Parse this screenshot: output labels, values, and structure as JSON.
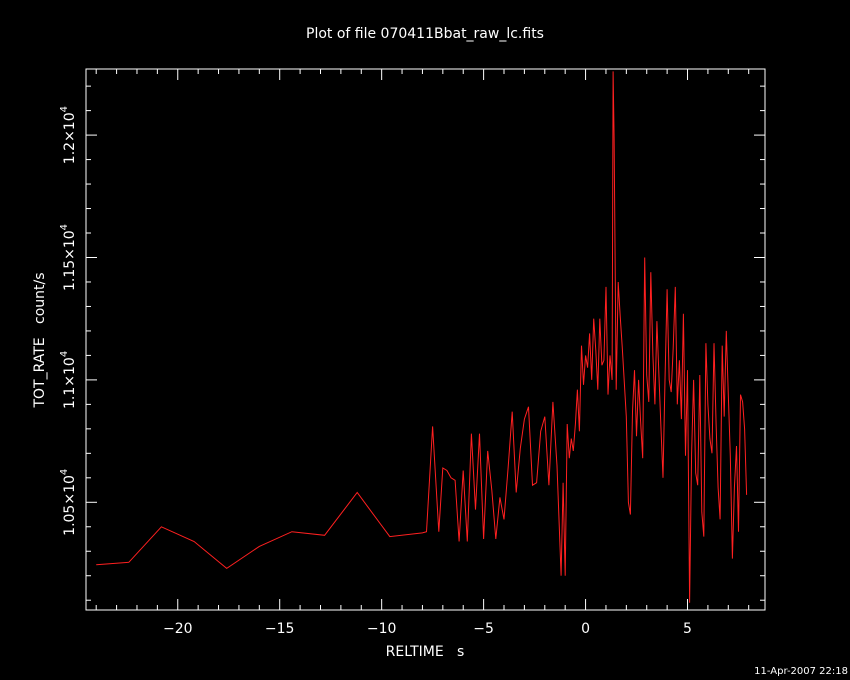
{
  "colors": {
    "background": "#000000",
    "foreground": "#ffffff",
    "series": "#ff2020"
  },
  "footer": {
    "timestamp": "11-Apr-2007 22:18"
  },
  "chart_data": {
    "type": "line",
    "title": "Plot of file 070411Bbat_raw_lc.fits",
    "xlabel": "RELTIME   s",
    "ylabel": "TOT_RATE   count/s",
    "xlim": [
      -24.5,
      8.8
    ],
    "ylim": [
      10060,
      12270
    ],
    "x_ticks": [
      {
        "value": -20,
        "label": "−20"
      },
      {
        "value": -15,
        "label": "−15"
      },
      {
        "value": -10,
        "label": "−10"
      },
      {
        "value": -5,
        "label": "−5"
      },
      {
        "value": 0,
        "label": "0"
      },
      {
        "value": 5,
        "label": "5"
      }
    ],
    "y_ticks": [
      {
        "value": 10500,
        "mantissa": "1.05×10",
        "exp": "4"
      },
      {
        "value": 11000,
        "mantissa": "1.1×10",
        "exp": "4"
      },
      {
        "value": 11500,
        "mantissa": "1.15×10",
        "exp": "4"
      },
      {
        "value": 12000,
        "mantissa": "1.2×10",
        "exp": "4"
      }
    ],
    "series": [
      {
        "x": [
          -24.0,
          -22.4,
          -20.8,
          -19.2,
          -17.6,
          -16.0,
          -14.4,
          -12.8,
          -11.2,
          -9.6,
          -8.0,
          -7.8,
          -7.5,
          -7.2,
          -7.0,
          -6.8,
          -6.6,
          -6.4,
          -6.2,
          -6.0,
          -5.8,
          -5.6,
          -5.4,
          -5.2,
          -5.0,
          -4.8,
          -4.6,
          -4.4,
          -4.2,
          -4.0,
          -3.8,
          -3.6,
          -3.4,
          -3.2,
          -3.0,
          -2.8,
          -2.6,
          -2.4,
          -2.2,
          -2.0,
          -1.8,
          -1.6,
          -1.4,
          -1.2,
          -1.1,
          -1.0,
          -0.9,
          -0.8,
          -0.7,
          -0.6,
          -0.5,
          -0.4,
          -0.3,
          -0.2,
          -0.1,
          0.0,
          0.1,
          0.2,
          0.3,
          0.4,
          0.5,
          0.6,
          0.7,
          0.8,
          0.9,
          1.0,
          1.1,
          1.2,
          1.3,
          1.35,
          1.4,
          1.5,
          1.6,
          1.7,
          1.8,
          1.9,
          2.0,
          2.1,
          2.2,
          2.3,
          2.4,
          2.5,
          2.6,
          2.7,
          2.8,
          2.9,
          3.0,
          3.1,
          3.2,
          3.3,
          3.4,
          3.5,
          3.6,
          3.7,
          3.8,
          3.9,
          4.0,
          4.1,
          4.2,
          4.3,
          4.4,
          4.5,
          4.6,
          4.7,
          4.8,
          4.9,
          5.0,
          5.1,
          5.2,
          5.3,
          5.4,
          5.5,
          5.6,
          5.7,
          5.8,
          5.9,
          6.0,
          6.1,
          6.2,
          6.3,
          6.4,
          6.5,
          6.6,
          6.7,
          6.8,
          6.9,
          7.0,
          7.1,
          7.2,
          7.3,
          7.4,
          7.5,
          7.6,
          7.7,
          7.8,
          7.9
        ],
        "y": [
          10245,
          10255,
          10400,
          10340,
          10230,
          10320,
          10380,
          10365,
          10540,
          10360,
          10375,
          10380,
          10810,
          10380,
          10640,
          10630,
          10600,
          10590,
          10340,
          10630,
          10340,
          10780,
          10470,
          10780,
          10350,
          10710,
          10550,
          10350,
          10520,
          10430,
          10640,
          10870,
          10540,
          10720,
          10840,
          10890,
          10570,
          10580,
          10790,
          10850,
          10570,
          10910,
          10650,
          10200,
          10580,
          10200,
          10820,
          10680,
          10760,
          10710,
          10820,
          10960,
          10790,
          11140,
          10980,
          11100,
          11050,
          11190,
          11000,
          11250,
          11120,
          10960,
          11250,
          11060,
          11080,
          11380,
          10940,
          11100,
          11000,
          12260,
          11990,
          10960,
          11400,
          11260,
          11130,
          10990,
          10850,
          10500,
          10450,
          10870,
          11040,
          10770,
          11000,
          10830,
          10680,
          11500,
          11020,
          10910,
          11440,
          11100,
          10900,
          11240,
          11010,
          10800,
          10600,
          11020,
          11370,
          11000,
          10950,
          11130,
          11380,
          10900,
          11080,
          10840,
          11270,
          10690,
          11040,
          10090,
          10700,
          11000,
          10620,
          10570,
          11020,
          10460,
          10360,
          11150,
          10900,
          10760,
          10700,
          11150,
          10820,
          10560,
          10430,
          11140,
          10850,
          11200,
          10940,
          10690,
          10270,
          10560,
          10730,
          10380,
          10940,
          10910,
          10800,
          10530
        ]
      }
    ]
  }
}
